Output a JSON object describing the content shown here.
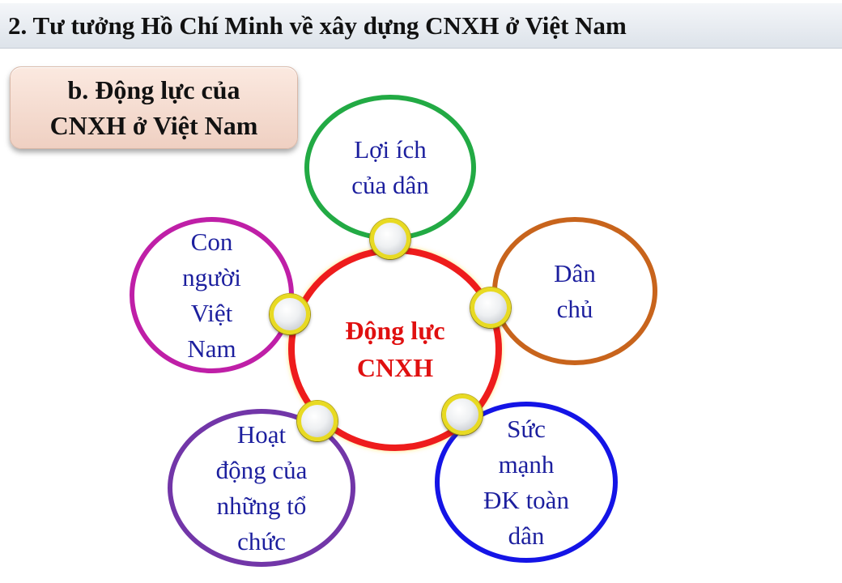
{
  "header": {
    "title": "2. Tư tưởng Hồ Chí Minh về xây dựng CNXH ở Việt Nam"
  },
  "section": {
    "line1": "b. Động lực của",
    "line2": "CNXH ở Việt Nam"
  },
  "diagram": {
    "center": {
      "line1": "Động lực",
      "line2": "CNXH",
      "color": "#e01010"
    },
    "nodes": {
      "top": {
        "lines": [
          "Lợi ích",
          "của dân"
        ],
        "color": "#22aa44"
      },
      "right": {
        "lines": [
          "Dân",
          "chủ"
        ],
        "color": "#c8641c"
      },
      "bottom_right": {
        "lines": [
          "Sức",
          "mạnh",
          "ĐK toàn",
          "dân"
        ],
        "color": "#1414e6"
      },
      "bottom_left": {
        "lines": [
          "Hoạt",
          "động của",
          "những tổ",
          "chức"
        ],
        "color": "#7236a8"
      },
      "left": {
        "lines": [
          "Con",
          "người",
          "Việt",
          "Nam"
        ],
        "color": "#bf1fa7"
      }
    }
  }
}
